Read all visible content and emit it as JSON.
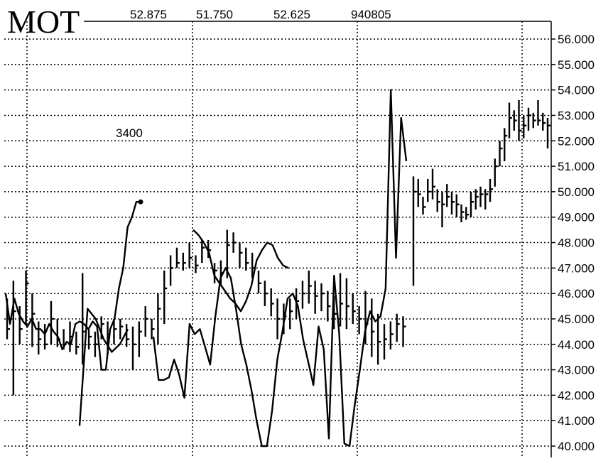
{
  "chart_data": {
    "type": "line",
    "title": "MOT",
    "header_values": [
      "52.875",
      "51.750",
      "52.625",
      "940805"
    ],
    "annotation": "3400",
    "ylim": [
      40,
      56
    ],
    "yticks": [
      "40.000",
      "41.000",
      "42.000",
      "43.000",
      "44.000",
      "45.000",
      "46.000",
      "47.000",
      "48.000",
      "49.000",
      "50.000",
      "51.000",
      "52.000",
      "53.000",
      "54.000",
      "55.000",
      "56.000"
    ],
    "grid": true,
    "x_gridlines": 4,
    "price_bars": [
      {
        "hi": 45.8,
        "lo": 44.2,
        "close": 44.6
      },
      {
        "hi": 46.5,
        "lo": 42.0,
        "close": 45.3
      },
      {
        "hi": 45.5,
        "lo": 44.0,
        "close": 44.6
      },
      {
        "hi": 46.9,
        "lo": 44.8,
        "close": 46.4
      },
      {
        "hi": 46.0,
        "lo": 43.9,
        "close": 45.2
      },
      {
        "hi": 44.9,
        "lo": 43.6,
        "close": 44.2
      },
      {
        "hi": 44.8,
        "lo": 43.8,
        "close": 44.0
      },
      {
        "hi": 45.7,
        "lo": 44.0,
        "close": 45.0
      },
      {
        "hi": 45.0,
        "lo": 43.9,
        "close": 44.2
      },
      {
        "hi": 44.6,
        "lo": 43.8,
        "close": 44.0
      },
      {
        "hi": 44.9,
        "lo": 43.7,
        "close": 44.3
      },
      {
        "hi": 44.5,
        "lo": 43.6,
        "close": 43.9
      },
      {
        "hi": 46.8,
        "lo": 43.2,
        "close": 44.5
      },
      {
        "hi": 44.6,
        "lo": 43.8,
        "close": 44.3
      },
      {
        "hi": 44.5,
        "lo": 43.5,
        "close": 44.0
      },
      {
        "hi": 45.1,
        "lo": 44.2,
        "close": 44.8
      },
      {
        "hi": 44.9,
        "lo": 43.6,
        "close": 44.4
      },
      {
        "hi": 45.0,
        "lo": 44.0,
        "close": 44.6
      },
      {
        "hi": 45.0,
        "lo": 44.2,
        "close": 44.7
      },
      {
        "hi": 44.8,
        "lo": 43.9,
        "close": 44.2
      },
      {
        "hi": 44.7,
        "lo": 43.0,
        "close": 44.0
      },
      {
        "hi": 44.9,
        "lo": 43.5,
        "close": 44.5
      },
      {
        "hi": 45.5,
        "lo": 44.3,
        "close": 45.0
      },
      {
        "hi": 45.0,
        "lo": 44.2,
        "close": 44.6
      },
      {
        "hi": 46.0,
        "lo": 44.0,
        "close": 45.4
      },
      {
        "hi": 46.9,
        "lo": 44.8,
        "close": 46.2
      },
      {
        "hi": 47.5,
        "lo": 46.3,
        "close": 47.0
      },
      {
        "hi": 47.8,
        "lo": 47.0,
        "close": 47.2
      },
      {
        "hi": 47.6,
        "lo": 46.9,
        "close": 47.2
      },
      {
        "hi": 48.0,
        "lo": 47.0,
        "close": 47.4
      },
      {
        "hi": 47.5,
        "lo": 46.8,
        "close": 47.1
      },
      {
        "hi": 48.1,
        "lo": 47.2,
        "close": 47.8
      },
      {
        "hi": 48.1,
        "lo": 47.4,
        "close": 47.7
      },
      {
        "hi": 47.2,
        "lo": 46.4,
        "close": 46.9
      },
      {
        "hi": 47.3,
        "lo": 46.3,
        "close": 46.8
      },
      {
        "hi": 48.5,
        "lo": 46.6,
        "close": 47.9
      },
      {
        "hi": 48.4,
        "lo": 47.6,
        "close": 48.0
      },
      {
        "hi": 48.0,
        "lo": 47.0,
        "close": 47.6
      },
      {
        "hi": 47.8,
        "lo": 46.9,
        "close": 47.2
      },
      {
        "hi": 47.6,
        "lo": 46.6,
        "close": 47.0
      },
      {
        "hi": 46.9,
        "lo": 46.0,
        "close": 46.4
      },
      {
        "hi": 46.5,
        "lo": 45.5,
        "close": 46.0
      },
      {
        "hi": 46.2,
        "lo": 45.1,
        "close": 45.6
      },
      {
        "hi": 45.8,
        "lo": 44.2,
        "close": 45.0
      },
      {
        "hi": 45.6,
        "lo": 44.4,
        "close": 45.1
      },
      {
        "hi": 45.8,
        "lo": 44.6,
        "close": 45.3
      },
      {
        "hi": 46.2,
        "lo": 45.0,
        "close": 45.7
      },
      {
        "hi": 46.5,
        "lo": 45.4,
        "close": 46.0
      },
      {
        "hi": 46.9,
        "lo": 45.6,
        "close": 46.3
      },
      {
        "hi": 46.5,
        "lo": 45.2,
        "close": 45.9
      },
      {
        "hi": 46.4,
        "lo": 45.3,
        "close": 46.0
      },
      {
        "hi": 46.1,
        "lo": 44.9,
        "close": 45.5
      },
      {
        "hi": 45.9,
        "lo": 44.6,
        "close": 45.2
      },
      {
        "hi": 46.8,
        "lo": 44.7,
        "close": 45.6
      },
      {
        "hi": 46.6,
        "lo": 44.6,
        "close": 45.5
      },
      {
        "hi": 46.0,
        "lo": 44.8,
        "close": 45.3
      },
      {
        "hi": 45.5,
        "lo": 44.4,
        "close": 45.0
      },
      {
        "hi": 46.1,
        "lo": 44.0,
        "close": 44.8
      },
      {
        "hi": 45.8,
        "lo": 43.5,
        "close": 44.5
      },
      {
        "hi": 45.2,
        "lo": 43.2,
        "close": 44.1
      },
      {
        "hi": 44.8,
        "lo": 43.4,
        "close": 44.2
      },
      {
        "hi": 44.9,
        "lo": 43.8,
        "close": 44.4
      },
      {
        "hi": 45.2,
        "lo": 44.1,
        "close": 44.8
      },
      {
        "hi": 45.1,
        "lo": 43.9,
        "close": 44.7
      }
    ],
    "price_bars_late": [
      {
        "hi": 50.6,
        "lo": 46.3,
        "close": 50.0
      },
      {
        "hi": 50.5,
        "lo": 49.4,
        "close": 49.9
      },
      {
        "hi": 49.8,
        "lo": 49.1,
        "close": 49.4
      },
      {
        "hi": 50.5,
        "lo": 49.6,
        "close": 50.0
      },
      {
        "hi": 50.9,
        "lo": 49.7,
        "close": 50.2
      },
      {
        "hi": 50.1,
        "lo": 49.2,
        "close": 49.6
      },
      {
        "hi": 50.0,
        "lo": 48.6,
        "close": 49.5
      },
      {
        "hi": 50.3,
        "lo": 49.4,
        "close": 49.8
      },
      {
        "hi": 50.0,
        "lo": 49.1,
        "close": 49.6
      },
      {
        "hi": 49.9,
        "lo": 49.0,
        "close": 49.5
      },
      {
        "hi": 49.5,
        "lo": 48.8,
        "close": 49.2
      },
      {
        "hi": 49.4,
        "lo": 48.9,
        "close": 49.1
      },
      {
        "hi": 50.0,
        "lo": 49.0,
        "close": 49.6
      },
      {
        "hi": 50.1,
        "lo": 49.3,
        "close": 49.8
      },
      {
        "hi": 50.2,
        "lo": 49.4,
        "close": 49.9
      },
      {
        "hi": 50.1,
        "lo": 49.3,
        "close": 49.9
      },
      {
        "hi": 50.5,
        "lo": 49.6,
        "close": 50.1
      },
      {
        "hi": 51.3,
        "lo": 50.2,
        "close": 51.0
      },
      {
        "hi": 52.0,
        "lo": 51.0,
        "close": 51.7
      },
      {
        "hi": 52.5,
        "lo": 51.2,
        "close": 52.2
      },
      {
        "hi": 53.5,
        "lo": 52.1,
        "close": 52.9
      },
      {
        "hi": 53.2,
        "lo": 52.4,
        "close": 52.8
      },
      {
        "hi": 53.6,
        "lo": 52.0,
        "close": 52.4
      },
      {
        "hi": 53.0,
        "lo": 52.1,
        "close": 52.6
      },
      {
        "hi": 53.3,
        "lo": 52.4,
        "close": 53.0
      },
      {
        "hi": 53.1,
        "lo": 52.5,
        "close": 52.8
      },
      {
        "hi": 53.6,
        "lo": 52.6,
        "close": 52.8
      },
      {
        "hi": 53.1,
        "lo": 52.4,
        "close": 52.7
      },
      {
        "hi": 52.9,
        "lo": 51.7,
        "close": 52.6
      }
    ],
    "series": [
      {
        "values": [
          46.0,
          44.8,
          45.8,
          45.2,
          44.9,
          44.7,
          45.0,
          44.6,
          44.6,
          44.4,
          44.8,
          44.5,
          44.3,
          43.8,
          44.1,
          44.0,
          44.8,
          44.9,
          44.8,
          44.6,
          44.9,
          44.7,
          43.0,
          43.0,
          44.6,
          45.0,
          46.2,
          47.0,
          48.6,
          49.0,
          49.6,
          49.6
        ]
      },
      {
        "values": [
          44.3,
          42.6,
          42.6,
          42.7,
          43.4,
          42.8,
          41.9,
          44.8,
          44.4,
          44.6,
          43.9,
          43.2,
          45.1,
          46.6,
          47.0,
          46.6,
          45.4,
          44.0,
          43.2,
          42.2,
          41.0,
          40.0,
          40.0,
          41.4,
          43.4,
          44.5,
          45.8,
          46.0,
          45.5,
          44.2,
          43.3,
          42.4,
          44.7,
          43.8,
          40.3,
          46.7,
          44.4,
          40.1,
          40.0,
          41.6,
          43.0,
          44.5,
          45.3,
          44.9,
          45.1,
          46.2,
          54.0,
          47.4,
          52.9,
          51.2
        ]
      },
      {
        "values": [
          48.5,
          48.3,
          48.0,
          47.6,
          46.7,
          46.4,
          46.1,
          45.8,
          45.6,
          45.3,
          45.7,
          46.3,
          47.3,
          47.7,
          48.0,
          47.9,
          47.4,
          47.1,
          47.0
        ]
      },
      {
        "values": [
          40.8,
          45.4,
          45.0,
          44.2,
          43.7,
          44.0,
          44.6
        ]
      }
    ]
  }
}
